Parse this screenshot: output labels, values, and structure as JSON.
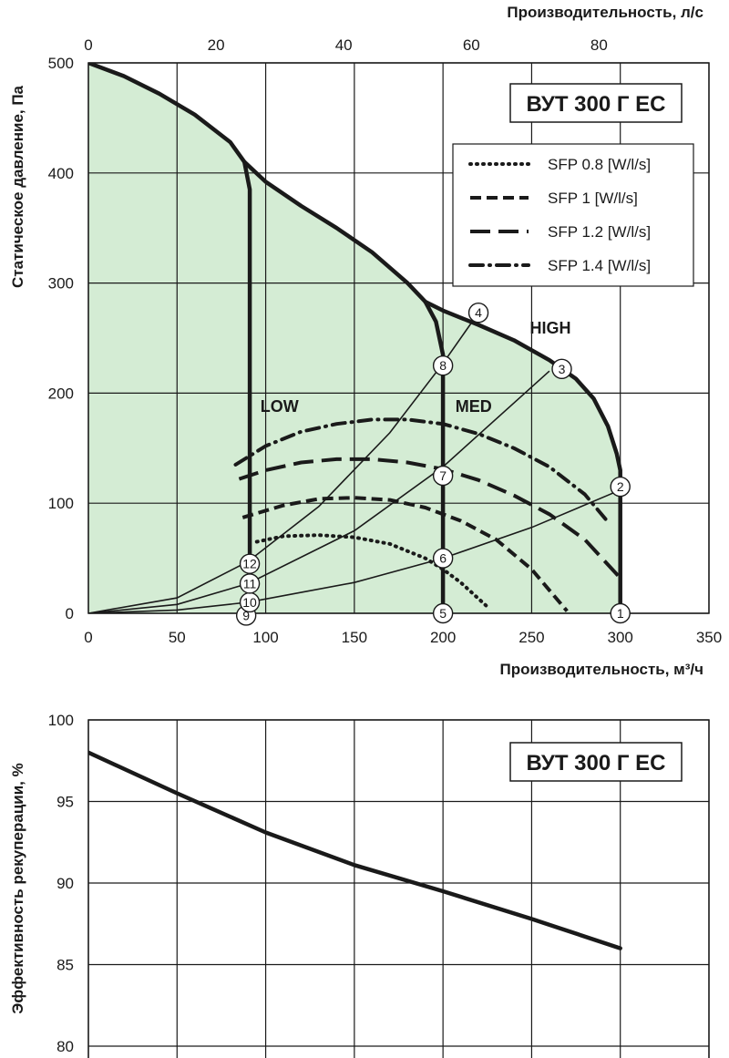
{
  "chart_data": [
    {
      "type": "line",
      "title": "ВУТ 300 Г ЕС",
      "xlabel": "Производительность, м³/ч",
      "x2label": "Производительность, л/с",
      "ylabel": "Статическое давление, Па",
      "xlim": [
        0,
        350
      ],
      "ylim": [
        0,
        500
      ],
      "x2lim_ls": [
        0,
        97.22
      ],
      "xticks": [
        0,
        50,
        100,
        150,
        200,
        250,
        300,
        350
      ],
      "x2ticks": [
        0,
        20,
        40,
        60,
        80
      ],
      "yticks": [
        0,
        100,
        200,
        300,
        400,
        500
      ],
      "grid": true,
      "fill_color": "#d4ecd4",
      "series": [
        {
          "style": "fan",
          "x": [
            0,
            20,
            40,
            60,
            80,
            88
          ],
          "y": [
            500,
            488,
            472,
            453,
            428,
            410
          ]
        },
        {
          "style": "fan",
          "x": [
            88,
            91,
            91
          ],
          "y": [
            410,
            385,
            0
          ]
        },
        {
          "style": "fan",
          "x": [
            88,
            100,
            120,
            140,
            160,
            180,
            190
          ],
          "y": [
            410,
            392,
            370,
            350,
            328,
            300,
            283
          ]
        },
        {
          "style": "fan",
          "x": [
            190,
            196,
            200,
            200
          ],
          "y": [
            283,
            265,
            235,
            0
          ]
        },
        {
          "style": "fan",
          "x": [
            190,
            200,
            220,
            240,
            260,
            275,
            285,
            293,
            298,
            300,
            300
          ],
          "y": [
            283,
            275,
            262,
            248,
            230,
            213,
            195,
            170,
            145,
            130,
            0
          ]
        },
        {
          "style": "system",
          "x": [
            0,
            50,
            90,
            130,
            170,
            200,
            220
          ],
          "y": [
            0,
            14,
            47,
            97,
            164,
            227,
            273
          ]
        },
        {
          "style": "system",
          "x": [
            0,
            50,
            90,
            150,
            200,
            260
          ],
          "y": [
            0,
            8,
            27,
            75,
            133,
            220
          ]
        },
        {
          "style": "system",
          "x": [
            0,
            50,
            90,
            150,
            200,
            250,
            300
          ],
          "y": [
            0,
            3,
            10,
            28,
            50,
            78,
            112
          ]
        }
      ],
      "sfp_curves": [
        {
          "name": "SFP 0.8 [W/l/s]",
          "dash": "dotted",
          "x": [
            95,
            110,
            130,
            150,
            170,
            190,
            200,
            210,
            225
          ],
          "y": [
            65,
            70,
            71,
            69,
            63,
            50,
            40,
            28,
            6
          ]
        },
        {
          "name": "SFP 1 [W/l/s]",
          "dash": "dash",
          "x": [
            87,
            110,
            130,
            150,
            170,
            190,
            210,
            230,
            250,
            270
          ],
          "y": [
            87,
            98,
            104,
            105,
            103,
            96,
            84,
            67,
            40,
            2
          ]
        },
        {
          "name": "SFP 1.2 [W/l/s]",
          "dash": "longdash",
          "x": [
            85,
            100,
            120,
            140,
            160,
            180,
            200,
            220,
            240,
            260,
            280,
            300
          ],
          "y": [
            122,
            130,
            137,
            140,
            140,
            137,
            131,
            121,
            107,
            90,
            67,
            32
          ]
        },
        {
          "name": "SFP 1.4 [W/l/s]",
          "dash": "dashdot",
          "x": [
            83,
            100,
            120,
            140,
            160,
            180,
            200,
            220,
            240,
            260,
            280,
            292
          ],
          "y": [
            135,
            152,
            165,
            172,
            176,
            176,
            172,
            163,
            150,
            133,
            108,
            85
          ]
        }
      ],
      "legend": {
        "placement": "top-right"
      },
      "mode_labels": [
        {
          "text": "LOW",
          "x": 97,
          "y": 183
        },
        {
          "text": "MED",
          "x": 207,
          "y": 183
        },
        {
          "text": "HIGH",
          "x": 249,
          "y": 254
        }
      ],
      "points": [
        {
          "label": "1",
          "x": 300,
          "y": 0
        },
        {
          "label": "2",
          "x": 300,
          "y": 115
        },
        {
          "label": "3",
          "x": 267,
          "y": 222
        },
        {
          "label": "4",
          "x": 220,
          "y": 273
        },
        {
          "label": "5",
          "x": 200,
          "y": 0
        },
        {
          "label": "6",
          "x": 200,
          "y": 50
        },
        {
          "label": "7",
          "x": 200,
          "y": 125
        },
        {
          "label": "8",
          "x": 200,
          "y": 225
        },
        {
          "label": "9",
          "x": 89,
          "y": -2
        },
        {
          "label": "10",
          "x": 91,
          "y": 10
        },
        {
          "label": "11",
          "x": 91,
          "y": 27
        },
        {
          "label": "12",
          "x": 91,
          "y": 45
        }
      ]
    },
    {
      "type": "line",
      "title": "ВУТ 300 Г ЕС",
      "ylabel": "Эффективность рекуперации, %",
      "ylim": [
        80,
        100
      ],
      "yticks": [
        80,
        85,
        90,
        95,
        100
      ],
      "xgrid_lines": [
        0,
        50,
        100,
        150,
        200,
        250,
        300,
        350
      ],
      "grid": true,
      "x": [
        0,
        50,
        100,
        150,
        200,
        250,
        300
      ],
      "y": [
        98,
        95.5,
        93.1,
        91.1,
        89.5,
        87.8,
        86
      ]
    }
  ]
}
